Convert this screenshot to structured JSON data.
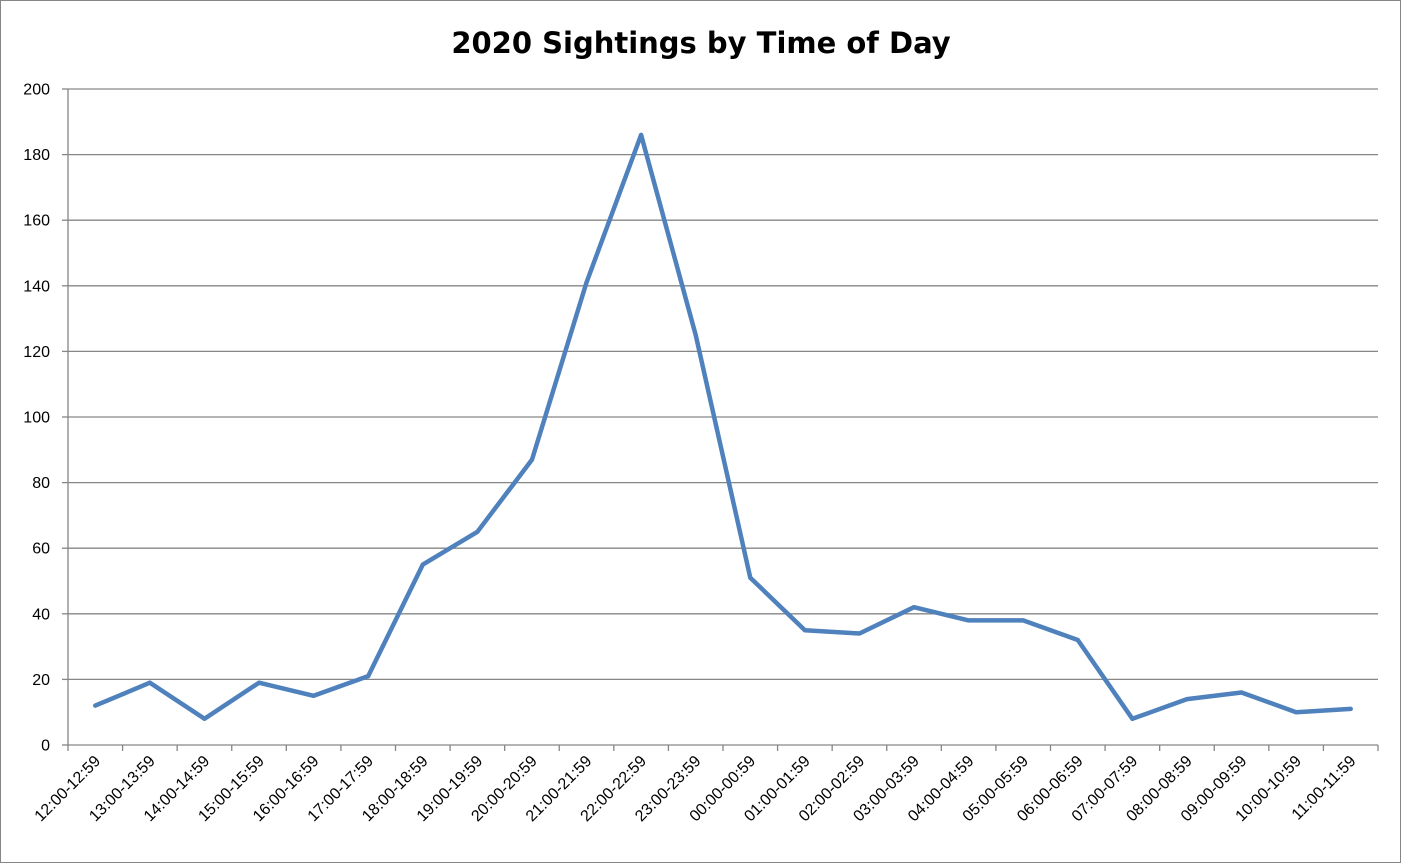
{
  "chart_data": {
    "type": "line",
    "title": "2020 Sightings by Time of Day",
    "xlabel": "",
    "ylabel": "",
    "categories": [
      "12:00-12:59",
      "13:00-13:59",
      "14:00-14:59",
      "15:00-15:59",
      "16:00-16:59",
      "17:00-17:59",
      "18:00-18:59",
      "19:00-19:59",
      "20:00-20:59",
      "21:00-21:59",
      "22:00-22:59",
      "23:00-23:59",
      "00:00-00:59",
      "01:00-01:59",
      "02:00-02:59",
      "03:00-03:59",
      "04:00-04:59",
      "05:00-05:59",
      "06:00-06:59",
      "07:00-07:59",
      "08:00-08:59",
      "09:00-09:59",
      "10:00-10:59",
      "11:00-11:59"
    ],
    "series": [
      {
        "values": [
          12,
          19,
          8,
          19,
          15,
          21,
          55,
          65,
          87,
          141,
          186,
          125,
          51,
          35,
          34,
          42,
          38,
          38,
          32,
          8,
          14,
          16,
          10,
          11
        ]
      }
    ],
    "ylim": [
      0,
      200
    ],
    "yticks": [
      0,
      20,
      40,
      60,
      80,
      100,
      120,
      140,
      160,
      180,
      200
    ],
    "grid": true,
    "legend": "none",
    "line_color": "#4F81BD",
    "grid_color": "#868686"
  }
}
